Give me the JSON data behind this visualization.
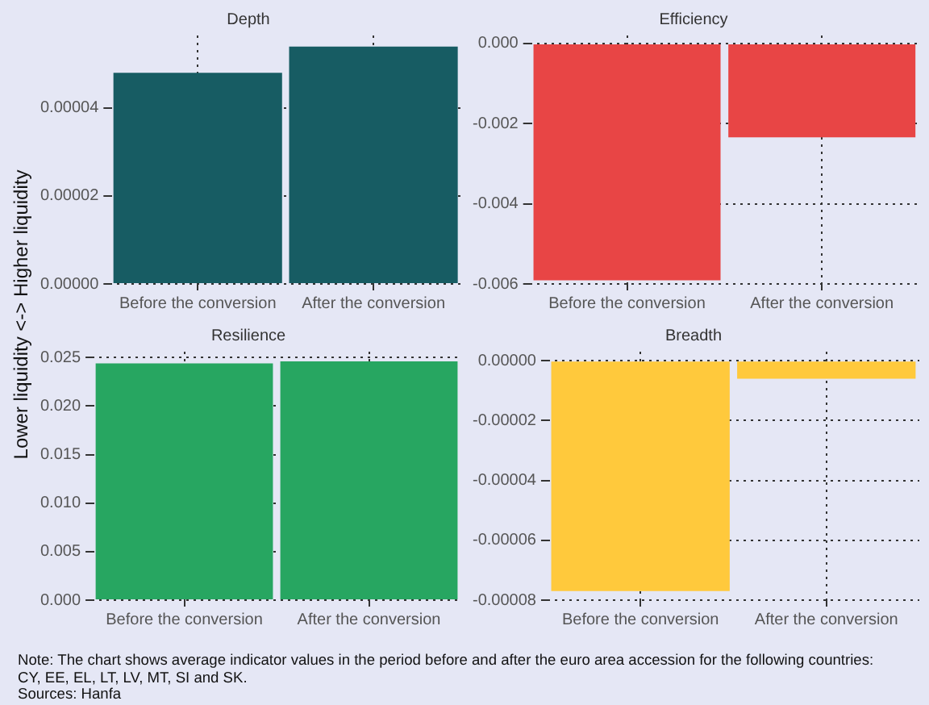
{
  "chart_data": [
    {
      "type": "bar",
      "title": "Depth",
      "ylabel": "Lower liquidity <-> Higher liquidity",
      "categories": [
        "Before the conversion",
        "After the conversion"
      ],
      "values": [
        4.8e-05,
        5.4e-05
      ],
      "color": "#175c63",
      "ylim": [
        0,
        5.65e-05
      ],
      "yticks": [
        {
          "value": 0,
          "label": "0.00000"
        },
        {
          "value": 2e-05,
          "label": "0.00002"
        },
        {
          "value": 4e-05,
          "label": "0.00004"
        }
      ],
      "grid": true
    },
    {
      "type": "bar",
      "title": "Efficiency",
      "categories": [
        "Before the conversion",
        "After the conversion"
      ],
      "values": [
        -0.00591,
        -0.00234
      ],
      "color": "#e84545",
      "ylim": [
        -0.006,
        0.0002
      ],
      "yticks": [
        -0.006,
        -0.004,
        -0.002,
        {
          "value": 0,
          "label": "0.000"
        }
      ],
      "grid": true
    },
    {
      "type": "bar",
      "title": "Resilience",
      "categories": [
        "Before the conversion",
        "After the conversion"
      ],
      "values": [
        0.0244,
        0.0246
      ],
      "color": "#27a661",
      "ylim": [
        0,
        0.0256
      ],
      "yticks": [
        {
          "value": 0,
          "label": "0.000"
        },
        0.005,
        {
          "value": 0.01,
          "label": "0.010"
        },
        0.015,
        {
          "value": 0.02,
          "label": "0.020"
        },
        0.025
      ],
      "grid": true
    },
    {
      "type": "bar",
      "title": "Breadth",
      "categories": [
        "Before the conversion",
        "After the conversion"
      ],
      "values": [
        -7.7e-05,
        -6e-06
      ],
      "color": "#ffc93c",
      "ylim": [
        -8e-05,
        3e-06
      ],
      "yticks": [
        {
          "value": -8e-05,
          "label": "-0.00008"
        },
        {
          "value": -6e-05,
          "label": "-0.00006"
        },
        {
          "value": -4e-05,
          "label": "-0.00004"
        },
        {
          "value": -2e-05,
          "label": "-0.00002"
        },
        {
          "value": 0,
          "label": "0.00000"
        }
      ],
      "grid": true,
      "annotations": [
        "Note: The chart shows average indicator values in the period before and after the euro area accession for the following countries: CY, EE, EL, LT, LV, MT, SI and SK.",
        "Sources: Hanfa"
      ]
    }
  ]
}
